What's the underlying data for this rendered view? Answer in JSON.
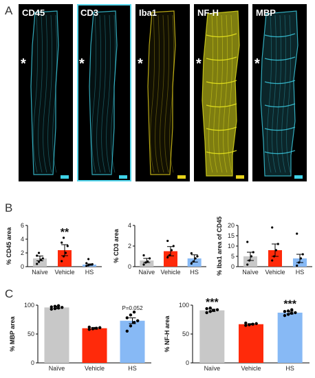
{
  "panel_labels": {
    "a": "A",
    "b": "B",
    "c": "C"
  },
  "micrographs": [
    {
      "label": "CD45",
      "stain_color": "#3fd3e8",
      "star": "*",
      "highlighted": false
    },
    {
      "label": "CD3",
      "stain_color": "#3fd3e8",
      "star": "*",
      "highlighted": true
    },
    {
      "label": "Iba1",
      "stain_color": "#e6d21a",
      "star": "*",
      "highlighted": false
    },
    {
      "label": "NF-H",
      "stain_color": "#e6e31e",
      "star": "*",
      "highlighted": false
    },
    {
      "label": "MBP",
      "stain_color": "#3fd3e8",
      "star": "*",
      "highlighted": false
    }
  ],
  "colors": {
    "naive": "#c8c8c8",
    "vehicle": "#ff2a0a",
    "hs": "#87b9f5"
  },
  "chart_data": [
    {
      "type": "bar",
      "id": "b1",
      "categories": [
        "Naïve",
        "Vehicle",
        "HS"
      ],
      "values": [
        1.2,
        2.4,
        0.3
      ],
      "errors": [
        0.35,
        0.8,
        0.1
      ],
      "ylabel": "% CD45 area",
      "ylim": [
        0,
        6
      ],
      "yticks": [
        0,
        2,
        4,
        6
      ],
      "annotations": [
        "",
        "**",
        ""
      ],
      "points": [
        [
          0.4,
          0.7,
          1.0,
          1.2,
          1.6,
          2.0
        ],
        [
          0.8,
          1.5,
          2.0,
          3.0,
          3.5,
          4.2
        ],
        [
          0.1,
          0.2,
          0.3,
          0.35,
          0.5,
          1.1
        ]
      ]
    },
    {
      "type": "bar",
      "id": "b2",
      "categories": [
        "Naïve",
        "Vehicle",
        "HS"
      ],
      "values": [
        0.6,
        1.5,
        0.8
      ],
      "errors": [
        0.2,
        0.45,
        0.35
      ],
      "ylabel": "% CD3 area",
      "ylim": [
        0,
        4
      ],
      "yticks": [
        0,
        2,
        4
      ],
      "annotations": [
        "",
        "",
        ""
      ],
      "points": [
        [
          0.2,
          0.4,
          0.5,
          0.8,
          1.1
        ],
        [
          0.9,
          1.1,
          1.6,
          2.0,
          2.5
        ],
        [
          0.3,
          0.5,
          0.8,
          1.0,
          1.3
        ]
      ]
    },
    {
      "type": "bar",
      "id": "b3",
      "categories": [
        "Naïve",
        "Vehicle",
        "HS"
      ],
      "values": [
        5,
        8,
        4
      ],
      "errors": [
        2,
        3,
        2
      ],
      "ylabel": "% Iba1 area of CD45",
      "ylim": [
        0,
        20
      ],
      "yticks": [
        0,
        5,
        10,
        15,
        20
      ],
      "annotations": [
        "",
        "",
        ""
      ],
      "points": [
        [
          1,
          3,
          5,
          7,
          12
        ],
        [
          3,
          5,
          8,
          11,
          19
        ],
        [
          0.5,
          2,
          4,
          6,
          16
        ]
      ]
    },
    {
      "type": "bar",
      "id": "c1",
      "categories": [
        "Naïve",
        "Vehicle",
        "HS"
      ],
      "values": [
        96,
        60,
        73
      ],
      "errors": [
        2,
        1.5,
        5
      ],
      "ylabel": "% MBP area",
      "ylim": [
        0,
        100
      ],
      "yticks": [
        0,
        50,
        100
      ],
      "annotations": [
        "",
        "",
        "P=0.052"
      ],
      "points": [
        [
          93,
          94,
          95,
          96,
          97,
          98,
          99
        ],
        [
          58,
          59,
          60,
          61,
          62
        ],
        [
          55,
          64,
          70,
          73,
          78,
          83,
          88
        ]
      ]
    },
    {
      "type": "bar",
      "id": "c2",
      "categories": [
        "Naïve",
        "Vehicle",
        "HS"
      ],
      "values": [
        91,
        67,
        87
      ],
      "errors": [
        2,
        1,
        2.5
      ],
      "ylabel": "% NF-H area",
      "ylim": [
        0,
        100
      ],
      "yticks": [
        0,
        50,
        100
      ],
      "annotations": [
        "***",
        "",
        "***"
      ],
      "points": [
        [
          87,
          89,
          91,
          92,
          94,
          95
        ],
        [
          65,
          66,
          67,
          68,
          69
        ],
        [
          82,
          84,
          86,
          87,
          89,
          90,
          92
        ]
      ]
    }
  ]
}
